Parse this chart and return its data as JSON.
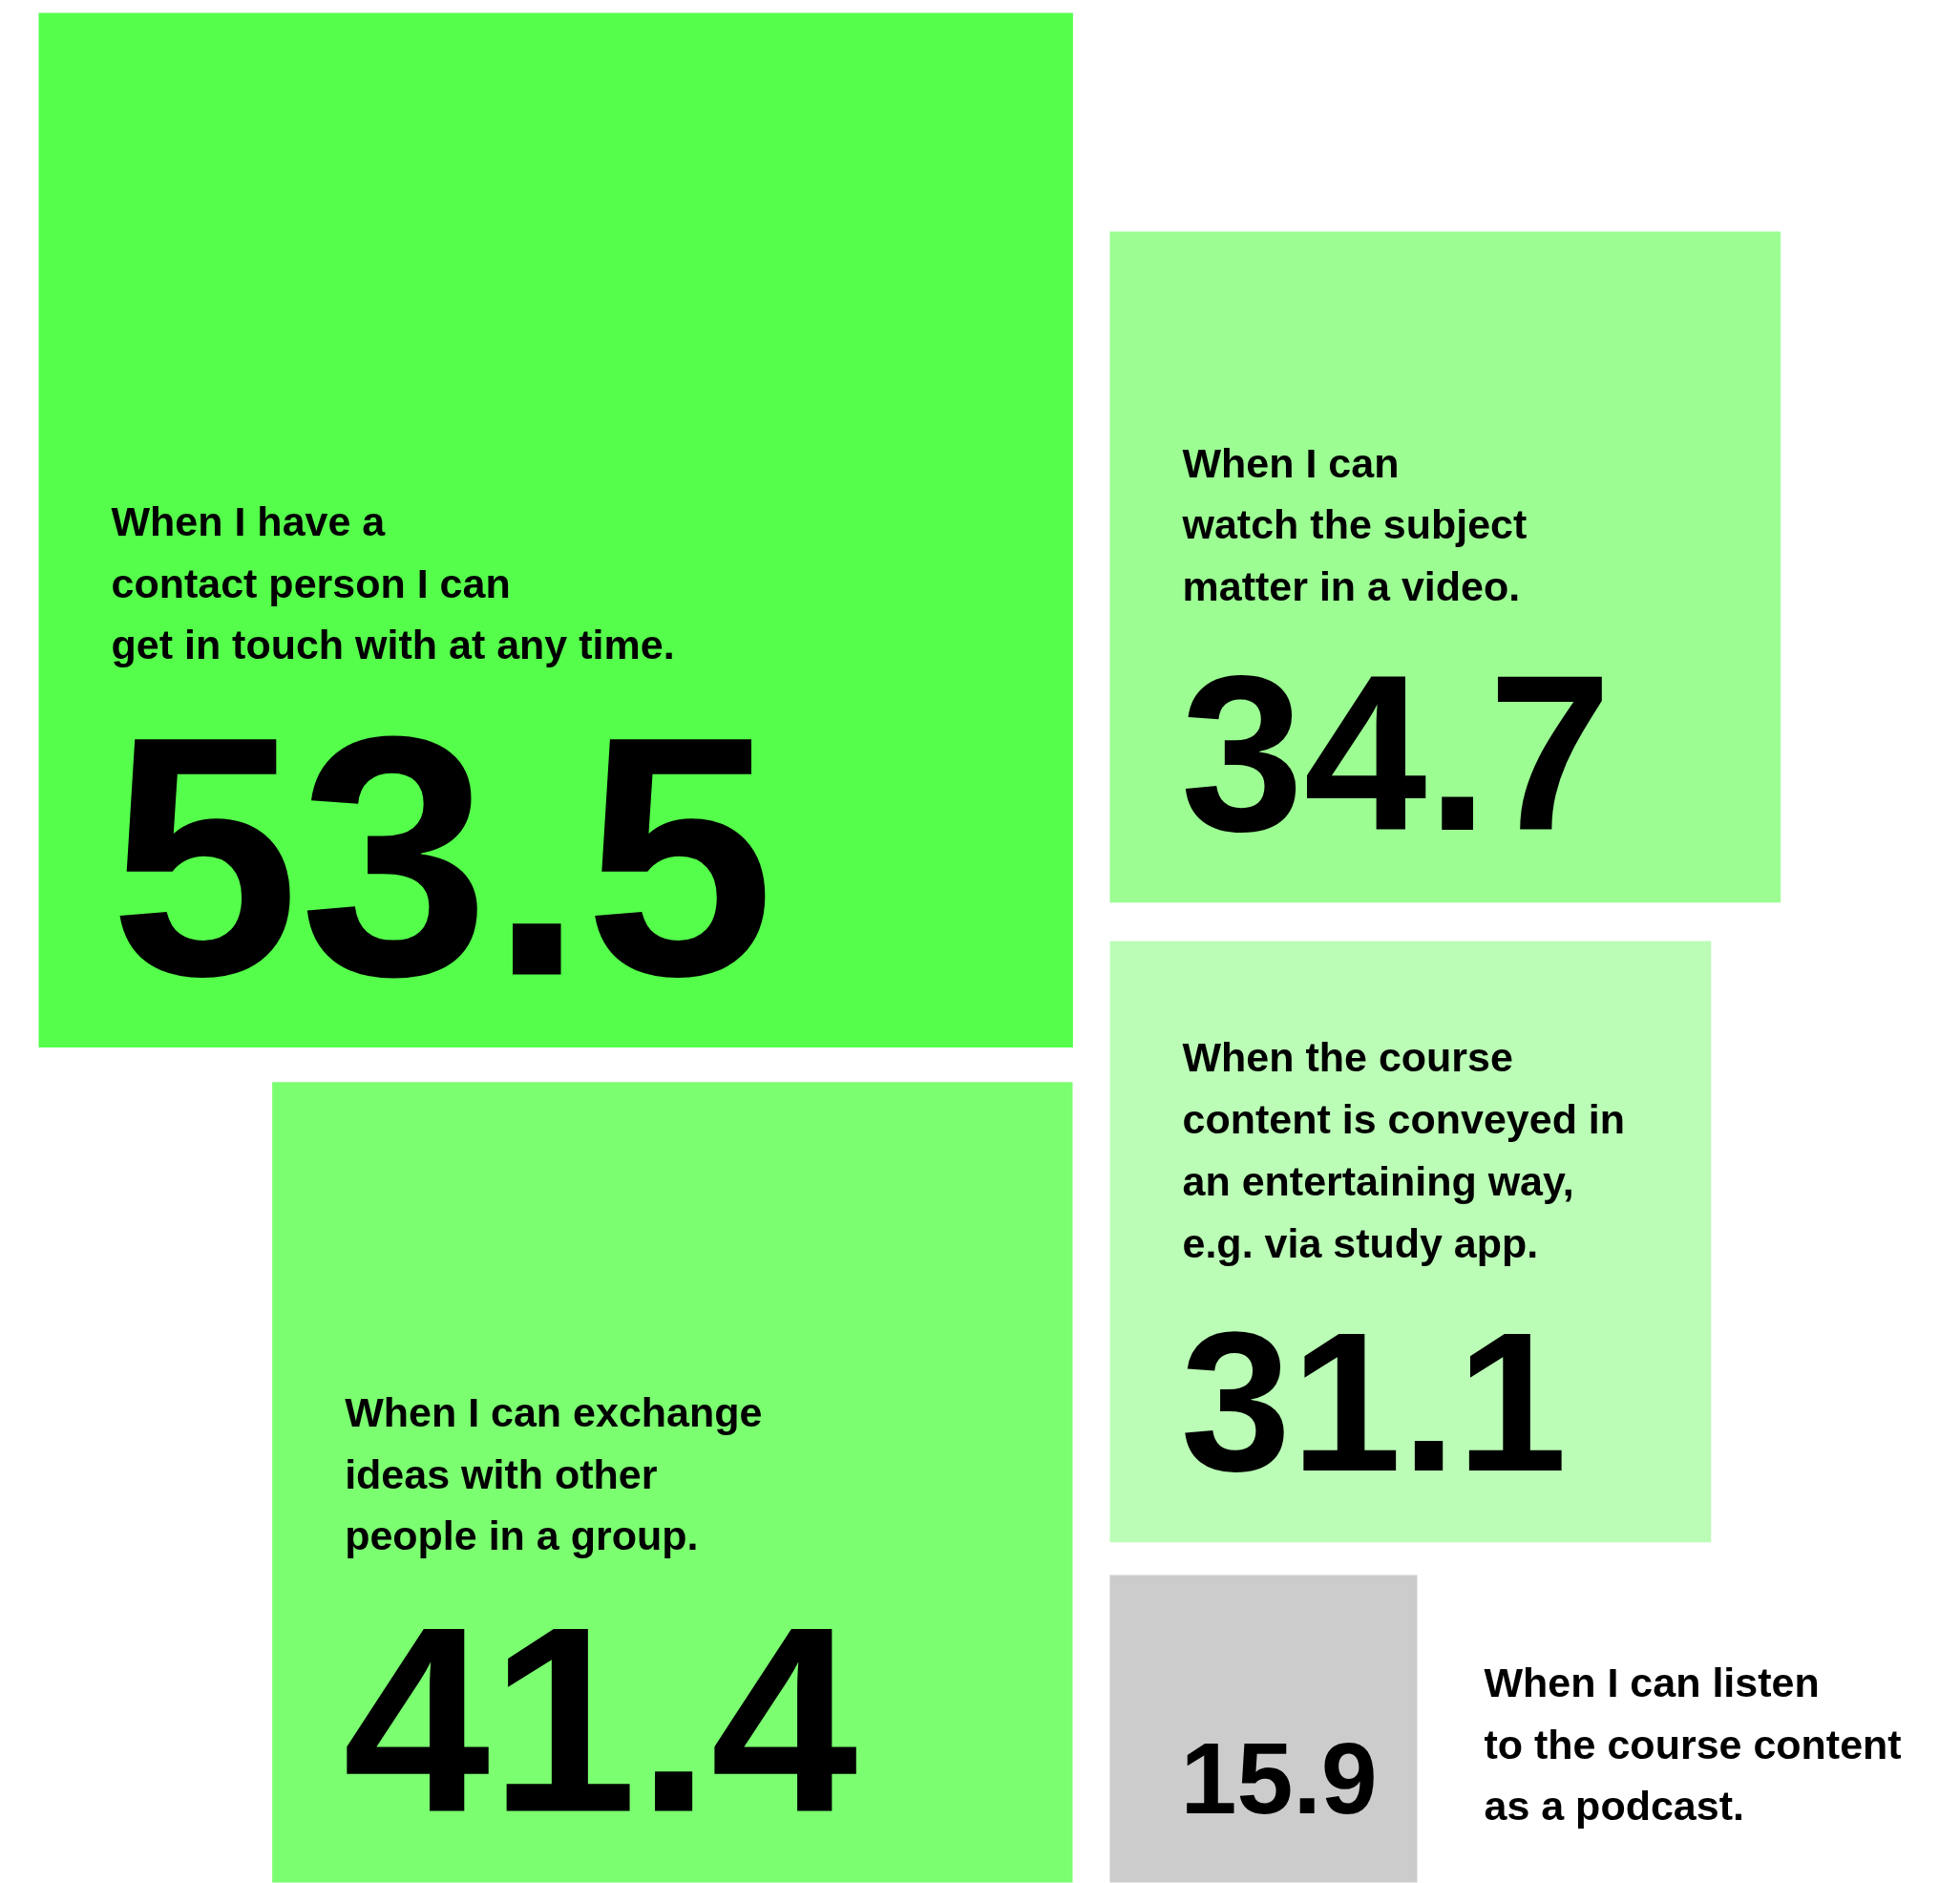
{
  "chart_data": {
    "type": "other",
    "categories": [
      "When I have a\ncontact person I can\nget in touch with at any time.",
      "When I can\nwatch the subject\nmatter in a video.",
      "When the course\ncontent is conveyed in\nan entertaining way,\ne.g. via study app.",
      "When I can exchange\nideas with other\npeople in a group.",
      "When I can listen\nto the course content\nas a podcast."
    ],
    "values": [
      53.5,
      34.7,
      31.1,
      41.4,
      15.9
    ],
    "colors": [
      "#55fe4b",
      "#9cfd93",
      "#bbfdb6",
      "#7bfe70",
      "#cccccc"
    ],
    "data_labels": true
  }
}
